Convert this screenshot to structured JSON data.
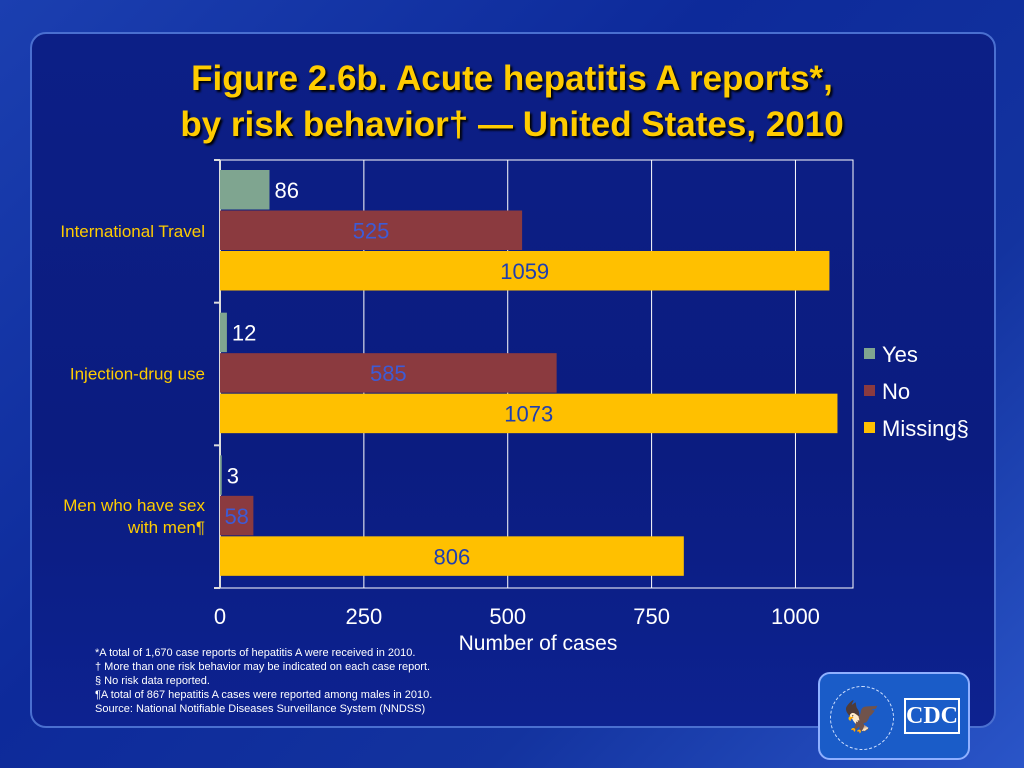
{
  "title": {
    "line1": "Figure 2.6b.  Acute hepatitis A reports*,",
    "line2": "by risk behavior† — United States, 2010"
  },
  "chart_data": {
    "type": "bar",
    "orientation": "horizontal",
    "title": "Figure 2.6b. Acute hepatitis A reports*, by risk behavior† — United States, 2010",
    "xlabel": "Number of cases",
    "ylabel": "",
    "xlim": [
      0,
      1100
    ],
    "xticks": [
      0,
      250,
      500,
      750,
      1000
    ],
    "grid": true,
    "legend_position": "right",
    "categories": [
      "International Travel",
      "Injection-drug use",
      "Men who have sex with men¶"
    ],
    "series": [
      {
        "name": "Yes",
        "color": "#7fa590",
        "values": [
          86,
          12,
          3
        ]
      },
      {
        "name": "No",
        "color": "#8b3a3f",
        "values": [
          525,
          585,
          58
        ]
      },
      {
        "name": "Missing§",
        "color": "#ffc000",
        "values": [
          1059,
          1073,
          806
        ]
      }
    ]
  },
  "footnotes": [
    "*A total of 1,670 case reports of hepatitis A were received in 2010.",
    "† More than one risk behavior may be indicated on each case report.",
    "§ No risk data reported.",
    "¶A total of 867 hepatitis A cases were reported among males in 2010.",
    "Source: National Notifiable Diseases Surveillance System (NNDSS)"
  ],
  "logo": {
    "text": "CDC",
    "seal": "Department of Health & Human Services USA"
  }
}
